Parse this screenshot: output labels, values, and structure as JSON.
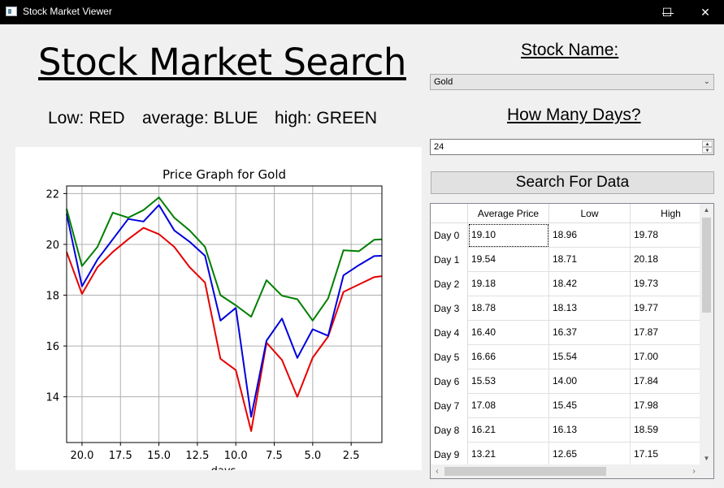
{
  "window": {
    "title": "Stock Market Viewer",
    "minimize": "—",
    "maximize": "☐",
    "close": "✕"
  },
  "heading": "Stock Market Search",
  "legend": {
    "low": "Low: RED",
    "average": "average: BLUE",
    "high": "high: GREEN"
  },
  "colors": {
    "low": "#e60000",
    "average": "#0000dd",
    "high": "#007f00"
  },
  "stock_label": "Stock Name:",
  "stock_selected": "Gold",
  "days_label": "How Many Days?",
  "days_value": "24",
  "search_button": "Search For Data",
  "table": {
    "headers": [
      "Average Price",
      "Low",
      "High"
    ],
    "rows": [
      {
        "day": "Day 0",
        "avg": "19.10",
        "low": "18.96",
        "high": "19.78"
      },
      {
        "day": "Day 1",
        "avg": "19.54",
        "low": "18.71",
        "high": "20.18"
      },
      {
        "day": "Day 2",
        "avg": "19.18",
        "low": "18.42",
        "high": "19.73"
      },
      {
        "day": "Day 3",
        "avg": "18.78",
        "low": "18.13",
        "high": "19.77"
      },
      {
        "day": "Day 4",
        "avg": "16.40",
        "low": "16.37",
        "high": "17.87"
      },
      {
        "day": "Day 5",
        "avg": "16.66",
        "low": "15.54",
        "high": "17.00"
      },
      {
        "day": "Day 6",
        "avg": "15.53",
        "low": "14.00",
        "high": "17.84"
      },
      {
        "day": "Day 7",
        "avg": "17.08",
        "low": "15.45",
        "high": "17.98"
      },
      {
        "day": "Day 8",
        "avg": "16.21",
        "low": "16.13",
        "high": "18.59"
      },
      {
        "day": "Day 9",
        "avg": "13.21",
        "low": "12.65",
        "high": "17.15"
      }
    ]
  },
  "chart_data": {
    "type": "line",
    "title": "Price Graph for Gold",
    "xlabel": "days",
    "ylabel": "",
    "xlim": [
      21,
      0.5
    ],
    "ylim": [
      12.2,
      22.3
    ],
    "xticks": [
      20,
      17.5,
      15,
      12.5,
      10,
      7.5,
      5,
      2.5
    ],
    "xtick_labels": [
      "20.0",
      "17.5",
      "15.0",
      "12.5",
      "10.0",
      "7.5",
      "5.0",
      "2.5"
    ],
    "yticks": [
      14,
      16,
      18,
      20,
      22
    ],
    "ytick_labels": [
      "14",
      "16",
      "18",
      "20",
      "22"
    ],
    "grid": true,
    "x": [
      21,
      20,
      19,
      18,
      17,
      16,
      15,
      14,
      13,
      12,
      11,
      10,
      9,
      8,
      7,
      6,
      5,
      4,
      3,
      2,
      1,
      0.5
    ],
    "series": [
      {
        "name": "Low",
        "color": "#e60000",
        "values": [
          19.7,
          18.05,
          19.1,
          19.7,
          20.2,
          20.65,
          20.4,
          19.9,
          19.1,
          18.5,
          15.5,
          15.05,
          12.65,
          16.13,
          15.45,
          14.0,
          15.54,
          16.37,
          18.13,
          18.42,
          18.71,
          18.75
        ]
      },
      {
        "name": "Average",
        "color": "#0000dd",
        "values": [
          21.2,
          18.35,
          19.4,
          20.2,
          21.0,
          20.9,
          21.55,
          20.55,
          20.1,
          19.55,
          17.0,
          17.5,
          13.21,
          16.21,
          17.08,
          15.53,
          16.66,
          16.4,
          18.78,
          19.18,
          19.54,
          19.55
        ]
      },
      {
        "name": "High",
        "color": "#007f00",
        "values": [
          21.4,
          19.15,
          19.9,
          21.25,
          21.05,
          21.35,
          21.85,
          21.05,
          20.55,
          19.9,
          18.0,
          17.6,
          17.15,
          18.59,
          17.98,
          17.84,
          17.0,
          17.87,
          19.77,
          19.73,
          20.18,
          20.2
        ]
      }
    ]
  }
}
